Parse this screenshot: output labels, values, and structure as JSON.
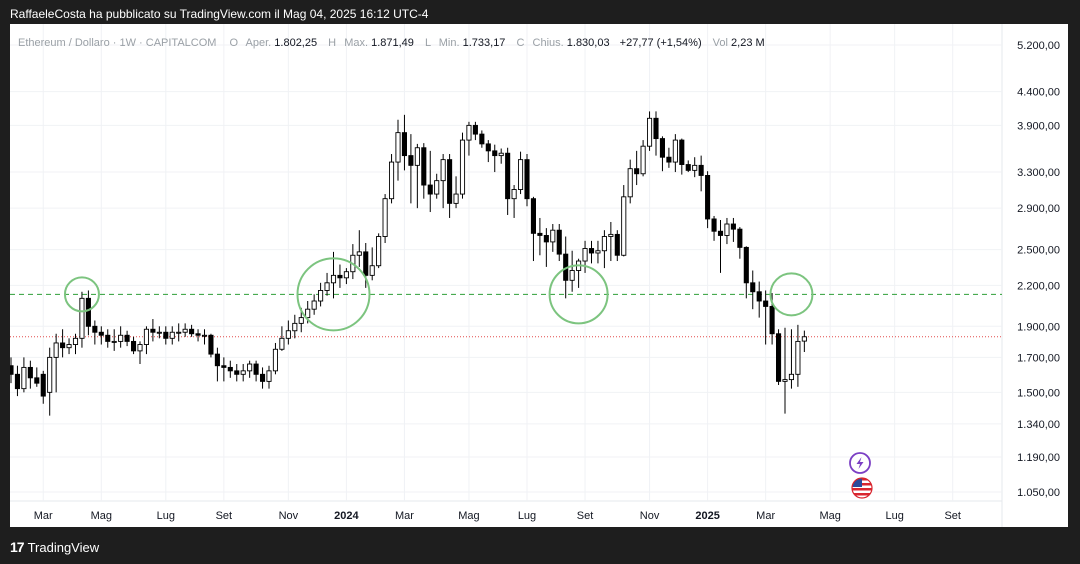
{
  "header": {
    "text": "RaffaeleCosta ha pubblicato su TradingView.com il Mag 04, 2025 16:12 UTC-4"
  },
  "legend": {
    "symbol": "Ethereum / Dollaro · 1W · CAPITALCOM",
    "open_label": "O",
    "open_name": "Aper.",
    "open_value": "1.802,25",
    "high_label": "H",
    "high_name": "Max.",
    "high_value": "1.871,49",
    "low_label": "L",
    "low_name": "Min.",
    "low_value": "1.733,17",
    "close_label": "C",
    "close_name": "Chius.",
    "close_value": "1.830,03",
    "change": "+27,77 (+1,54%)",
    "vol_label": "Vol",
    "vol_value": "2,23 M"
  },
  "footer": {
    "logo": "17",
    "brand": "TradingView"
  },
  "icons": {
    "flash": "lightning-icon",
    "flag": "us-flag-icon"
  },
  "colors": {
    "bull": "#ffffff",
    "bear": "#000000",
    "support": "#2e9e37",
    "circle": "#7cc47f",
    "last_price": "#e24c4c"
  },
  "chart_data": {
    "type": "candlestick",
    "title": "Ethereum / Dollaro · 1W · CAPITALCOM",
    "y_scale": "log",
    "ylim": [
      1000,
      5500
    ],
    "y_ticks": [
      {
        "v": 5200,
        "label": "5.200,00"
      },
      {
        "v": 4400,
        "label": "4.400,00"
      },
      {
        "v": 3900,
        "label": "3.900,00"
      },
      {
        "v": 3300,
        "label": "3.300,00"
      },
      {
        "v": 2900,
        "label": "2.900,00"
      },
      {
        "v": 2500,
        "label": "2.500,00"
      },
      {
        "v": 2200,
        "label": "2.200,00"
      },
      {
        "v": 1900,
        "label": "1.900,00"
      },
      {
        "v": 1700,
        "label": "1.700,00"
      },
      {
        "v": 1500,
        "label": "1.500,00"
      },
      {
        "v": 1340,
        "label": "1.340,00"
      },
      {
        "v": 1190,
        "label": "1.190,00"
      },
      {
        "v": 1050,
        "label": "1.050,00"
      }
    ],
    "x_ticks": [
      {
        "i": 5,
        "label": "Mar"
      },
      {
        "i": 14,
        "label": "Mag"
      },
      {
        "i": 24,
        "label": "Lug"
      },
      {
        "i": 33,
        "label": "Set"
      },
      {
        "i": 43,
        "label": "Nov",
        "bold": false
      },
      {
        "i": 52,
        "label": "2024",
        "bold": true
      },
      {
        "i": 61,
        "label": "Mar"
      },
      {
        "i": 71,
        "label": "Mag"
      },
      {
        "i": 80,
        "label": "Lug"
      },
      {
        "i": 89,
        "label": "Set"
      },
      {
        "i": 99,
        "label": "Nov"
      },
      {
        "i": 108,
        "label": "2025",
        "bold": true
      },
      {
        "i": 117,
        "label": "Mar"
      },
      {
        "i": 127,
        "label": "Mag"
      },
      {
        "i": 137,
        "label": "Lug"
      },
      {
        "i": 146,
        "label": "Set"
      }
    ],
    "support_level": 2130,
    "last_price": 1830,
    "highlight_candles": [
      11,
      50,
      88,
      121
    ],
    "closes": [
      1600,
      1520,
      1640,
      1580,
      1550,
      1480,
      1700,
      1790,
      1760,
      1780,
      1820,
      2100,
      1900,
      1860,
      1840,
      1800,
      1800,
      1840,
      1800,
      1740,
      1780,
      1880,
      1860,
      1860,
      1820,
      1860,
      1860,
      1880,
      1850,
      1840,
      1840,
      1720,
      1650,
      1640,
      1620,
      1600,
      1620,
      1660,
      1600,
      1560,
      1620,
      1750,
      1820,
      1870,
      1920,
      1960,
      2020,
      2080,
      2160,
      2220,
      2280,
      2260,
      2310,
      2450,
      2480,
      2280,
      2360,
      2620,
      3000,
      3420,
      3800,
      3500,
      3380,
      3600,
      3150,
      3050,
      3200,
      3450,
      2950,
      3050,
      3700,
      3900,
      3780,
      3650,
      3560,
      3500,
      3530,
      3000,
      3100,
      3450,
      3000,
      2650,
      2630,
      2570,
      2680,
      2460,
      2240,
      2320,
      2400,
      2510,
      2470,
      2490,
      2620,
      2640,
      2450,
      3020,
      3340,
      3280,
      3620,
      4000,
      3720,
      3480,
      3420,
      3700,
      3390,
      3320,
      3380,
      3260,
      2790,
      2670,
      2630,
      2740,
      2690,
      2520,
      2220,
      2150,
      2080,
      2040,
      1850,
      1560,
      1570,
      1600,
      1800,
      1830
    ],
    "opens": [
      1650,
      1600,
      1520,
      1640,
      1580,
      1600,
      1500,
      1700,
      1790,
      1760,
      1780,
      1820,
      2100,
      1900,
      1860,
      1840,
      1800,
      1800,
      1840,
      1800,
      1740,
      1780,
      1880,
      1860,
      1860,
      1820,
      1860,
      1860,
      1880,
      1850,
      1840,
      1840,
      1720,
      1650,
      1640,
      1620,
      1600,
      1620,
      1660,
      1600,
      1560,
      1620,
      1750,
      1820,
      1870,
      1920,
      1960,
      2020,
      2080,
      2160,
      2220,
      2280,
      2260,
      2310,
      2450,
      2480,
      2280,
      2360,
      2620,
      3000,
      3420,
      3800,
      3500,
      3380,
      3600,
      3150,
      3050,
      3200,
      3450,
      2950,
      3050,
      3700,
      3900,
      3780,
      3650,
      3560,
      3500,
      3530,
      3000,
      3100,
      3450,
      3000,
      2650,
      2630,
      2570,
      2680,
      2460,
      2240,
      2320,
      2400,
      2510,
      2470,
      2490,
      2620,
      2640,
      2450,
      3020,
      3340,
      3280,
      3620,
      4000,
      3720,
      3480,
      3420,
      3700,
      3390,
      3320,
      3380,
      3260,
      2790,
      2670,
      2630,
      2740,
      2690,
      2520,
      2220,
      2150,
      2080,
      2040,
      1850,
      1560,
      1570,
      1600,
      1802
    ],
    "highs": [
      1700,
      1650,
      1700,
      1680,
      1640,
      1620,
      1760,
      1850,
      1880,
      1820,
      1850,
      2150,
      2160,
      1940,
      1900,
      1880,
      1880,
      1900,
      1870,
      1830,
      1800,
      1900,
      1950,
      1900,
      1900,
      1900,
      1920,
      1920,
      1910,
      1880,
      1880,
      1850,
      1760,
      1700,
      1680,
      1660,
      1660,
      1680,
      1680,
      1640,
      1650,
      1790,
      1900,
      1940,
      1980,
      2030,
      2080,
      2130,
      2220,
      2300,
      2480,
      2370,
      2340,
      2550,
      2680,
      2560,
      2520,
      2650,
      3050,
      3520,
      3980,
      4050,
      3780,
      3650,
      3660,
      3560,
      3280,
      3520,
      3520,
      3250,
      3800,
      3950,
      3950,
      3830,
      3700,
      3640,
      3590,
      3600,
      3150,
      3550,
      3520,
      3020,
      2800,
      2700,
      2740,
      2740,
      2620,
      2490,
      2420,
      2580,
      2580,
      2580,
      2680,
      2760,
      2680,
      3150,
      3450,
      3560,
      3700,
      4100,
      4100,
      3750,
      3600,
      3780,
      3720,
      3440,
      3480,
      3500,
      3310,
      2820,
      2780,
      2800,
      2800,
      2710,
      2530,
      2320,
      2230,
      2160,
      2140,
      1880,
      1890,
      1880,
      1910,
      1871
    ],
    "lows": [
      1550,
      1480,
      1500,
      1520,
      1530,
      1440,
      1380,
      1500,
      1700,
      1720,
      1720,
      1760,
      1840,
      1780,
      1780,
      1760,
      1740,
      1760,
      1770,
      1720,
      1660,
      1720,
      1800,
      1820,
      1780,
      1780,
      1800,
      1830,
      1830,
      1800,
      1780,
      1700,
      1560,
      1560,
      1580,
      1560,
      1560,
      1580,
      1560,
      1520,
      1520,
      1600,
      1740,
      1780,
      1820,
      1860,
      1920,
      1980,
      2040,
      2120,
      2100,
      2180,
      2210,
      2250,
      2350,
      2180,
      2240,
      2340,
      2560,
      2950,
      3200,
      3320,
      2950,
      2900,
      3000,
      2860,
      3000,
      2900,
      2800,
      2900,
      3000,
      3500,
      3700,
      3600,
      3420,
      3300,
      3400,
      2830,
      2800,
      3050,
      2920,
      2400,
      2450,
      2350,
      2480,
      2400,
      2100,
      2150,
      2180,
      2300,
      2380,
      2380,
      2340,
      2400,
      2400,
      2440,
      2950,
      3150,
      3250,
      3560,
      3500,
      3310,
      3350,
      3300,
      3270,
      3300,
      3240,
      3080,
      2700,
      2580,
      2300,
      2550,
      2570,
      2420,
      2100,
      2020,
      1960,
      1780,
      1780,
      1540,
      1390,
      1520,
      1530,
      1733
    ]
  }
}
